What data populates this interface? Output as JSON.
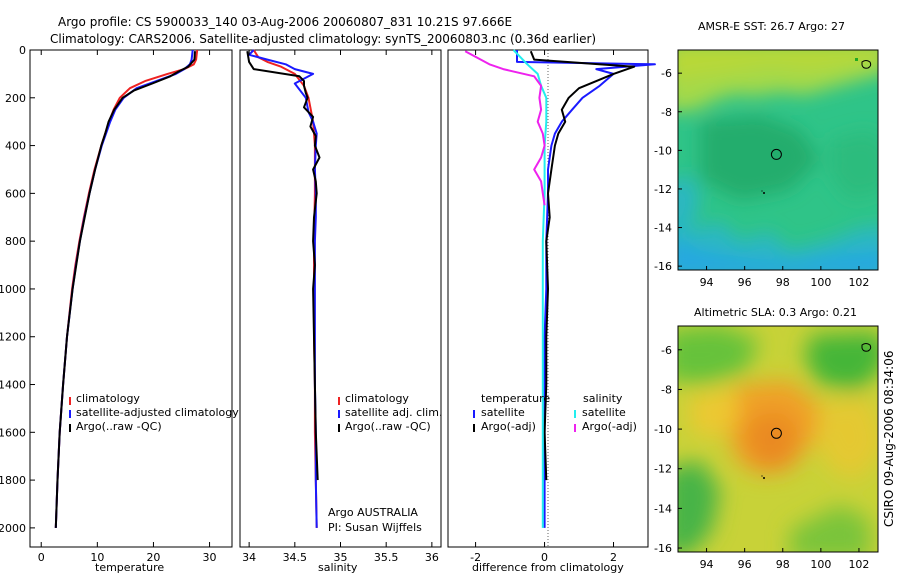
{
  "header": {
    "line1": "Argo profile: CS 5900033_140 03-Aug-2006 20060807_831 10.21S 97.666E",
    "line2": "Climatology: CARS2006. Satellite-adjusted climatology: synTS_20060803.nc (0.36d earlier)"
  },
  "side_stamp": "CSIRO 09-Aug-2006 08:34:06",
  "colors": {
    "climatology": "#ee2222",
    "satellite": "#1a1aff",
    "argo": "#000000",
    "cyan": "#22eeee",
    "magenta": "#ee22ee"
  },
  "chart_data": [
    {
      "id": "temperature",
      "type": "line",
      "xlabel": "temperature",
      "ylabel": "",
      "xlim": [
        -2,
        34
      ],
      "ylim": [
        2080,
        0
      ],
      "xticks": [
        0,
        10,
        20,
        30
      ],
      "xtick_labels": [
        "0",
        "10",
        "20",
        "30"
      ],
      "yticks": [
        0,
        200,
        400,
        600,
        800,
        1000,
        1200,
        1400,
        1600,
        1800,
        2000
      ],
      "ytick_labels": [
        "0",
        "200",
        "400",
        "600",
        "800",
        "1000",
        "1200",
        "1400",
        "1600",
        "1800",
        "2000"
      ],
      "legend": [
        "climatology",
        "satellite-adjusted climatology",
        "Argo(..raw -QC)"
      ],
      "series": [
        {
          "name": "climatology",
          "color": "#ee2222",
          "depth": [
            0,
            40,
            60,
            80,
            100,
            130,
            160,
            200,
            250,
            300,
            400,
            500,
            600,
            700,
            800,
            900,
            1000,
            1200,
            1400,
            1600,
            1800,
            2000
          ],
          "values": [
            27.8,
            27.6,
            27.2,
            25.5,
            22.5,
            18.5,
            15.8,
            14,
            12.9,
            12.1,
            10.7,
            9.5,
            8.5,
            7.6,
            6.8,
            6.1,
            5.5,
            4.6,
            3.9,
            3.3,
            2.9,
            2.6
          ]
        },
        {
          "name": "satellite-adjusted climatology",
          "color": "#1a1aff",
          "depth": [
            0,
            40,
            60,
            80,
            100,
            130,
            160,
            200,
            250,
            300,
            400,
            500,
            600,
            700,
            800,
            900,
            1000,
            1200,
            1400,
            1600,
            1800,
            2000
          ],
          "values": [
            27,
            26.8,
            26.5,
            25.5,
            24,
            20.5,
            17,
            14.7,
            13.2,
            12.3,
            10.8,
            9.6,
            8.6,
            7.7,
            6.9,
            6.2,
            5.6,
            4.6,
            3.9,
            3.3,
            2.9,
            2.6
          ]
        },
        {
          "name": "Argo(..raw -QC)",
          "color": "#000000",
          "depth": [
            5,
            40,
            70,
            90,
            110,
            140,
            170,
            200,
            250,
            300,
            350,
            400,
            500,
            600,
            800,
            1000,
            1200,
            1400,
            1600,
            1800,
            2000
          ],
          "values": [
            27.4,
            27.3,
            26.2,
            24.5,
            23,
            19.8,
            16.5,
            14.5,
            13,
            12,
            11.4,
            10.7,
            9.6,
            8.6,
            6.9,
            5.6,
            4.6,
            3.9,
            3.3,
            2.9,
            2.6
          ]
        }
      ]
    },
    {
      "id": "salinity",
      "type": "line",
      "xlabel": "salinity",
      "xlim": [
        33.9,
        36.1
      ],
      "ylim": [
        2080,
        0
      ],
      "xticks": [
        34,
        34.5,
        35,
        35.5,
        36
      ],
      "xtick_labels": [
        "34",
        "34.5",
        "35",
        "35.5",
        "36"
      ],
      "legend": [
        "climatology",
        "satellite adj. clim.",
        "Argo(..raw -QC)"
      ],
      "annotation": [
        "Argo AUSTRALIA",
        "PI: Susan Wijffels"
      ],
      "series": [
        {
          "name": "climatology",
          "color": "#ee2222",
          "depth": [
            0,
            30,
            50,
            70,
            100,
            150,
            200,
            300,
            400,
            500,
            600,
            800,
            1000,
            1200,
            1400,
            1600,
            1800,
            2000
          ],
          "values": [
            34.05,
            34.1,
            34.2,
            34.35,
            34.5,
            34.6,
            34.65,
            34.7,
            34.72,
            34.72,
            34.72,
            34.71,
            34.71,
            34.71,
            34.72,
            34.72,
            34.73,
            34.74
          ]
        },
        {
          "name": "satellite adj. clim.",
          "color": "#1a1aff",
          "depth": [
            0,
            20,
            40,
            60,
            80,
            100,
            140,
            200,
            260,
            300,
            350,
            400,
            500,
            600,
            700,
            800,
            1000,
            1200,
            1400,
            1600,
            1800,
            2000
          ],
          "values": [
            34.05,
            34,
            34.2,
            34.4,
            34.5,
            34.7,
            34.5,
            34.62,
            34.65,
            34.7,
            34.74,
            34.73,
            34.72,
            34.73,
            34.73,
            34.72,
            34.72,
            34.72,
            34.72,
            34.73,
            34.73,
            34.74
          ]
        },
        {
          "name": "Argo(..raw -QC)",
          "color": "#000000",
          "depth": [
            5,
            50,
            80,
            110,
            130,
            150,
            180,
            200,
            240,
            280,
            320,
            360,
            400,
            450,
            500,
            550,
            600,
            700,
            800,
            900,
            1000,
            1200,
            1400,
            1600,
            1800
          ],
          "values": [
            33.98,
            34.0,
            34.05,
            34.55,
            34.6,
            34.6,
            34.62,
            34.64,
            34.6,
            34.7,
            34.67,
            34.73,
            34.72,
            34.77,
            34.7,
            34.73,
            34.74,
            34.71,
            34.7,
            34.72,
            34.7,
            34.71,
            34.72,
            34.73,
            34.75
          ]
        }
      ]
    },
    {
      "id": "difference",
      "type": "line",
      "xlabel": "difference from climatology",
      "xlim": [
        -2.8,
        3.0
      ],
      "ylim": [
        2080,
        0
      ],
      "xticks": [
        -2,
        0,
        2
      ],
      "xtick_labels": [
        "-2",
        "0",
        "2"
      ],
      "legend_temperature": {
        "header": "temperature",
        "items": [
          "satellite",
          "Argo(-adj)"
        ]
      },
      "legend_salinity": {
        "header": "salinity",
        "items": [
          "satellite",
          "Argo(-adj)"
        ]
      },
      "series": [
        {
          "name": "temperature satellite",
          "color": "#1a1aff",
          "depth": [
            0,
            50,
            60,
            80,
            100,
            150,
            200,
            250,
            300,
            350,
            400,
            500,
            600,
            800,
            1000,
            1200,
            1400,
            1600,
            1800,
            2000
          ],
          "values": [
            -0.8,
            -0.8,
            3.2,
            1.5,
            2,
            1.6,
            1.1,
            0.8,
            0.5,
            0.3,
            0.2,
            0.1,
            0.1,
            0.05,
            0.05,
            0,
            0,
            0,
            0,
            0
          ]
        },
        {
          "name": "temperature Argo(-adj)",
          "color": "#000000",
          "depth": [
            5,
            40,
            70,
            100,
            130,
            160,
            200,
            250,
            300,
            350,
            400,
            500,
            600,
            700,
            800,
            1000,
            1200,
            1400,
            1600,
            1800
          ],
          "values": [
            -0.4,
            -0.3,
            2.6,
            2,
            1.5,
            1,
            0.7,
            0.5,
            0.6,
            0.4,
            0.3,
            0.2,
            0.1,
            0.15,
            0.05,
            0.1,
            0.05,
            0.05,
            0,
            0.05
          ]
        },
        {
          "name": "salinity satellite",
          "color": "#22eeee",
          "depth": [
            0,
            30,
            60,
            100,
            150,
            200,
            300,
            400,
            500,
            600,
            800,
            1000,
            1200,
            1400,
            1600,
            1800,
            2000
          ],
          "values": [
            -0.9,
            -0.7,
            -0.5,
            -0.2,
            -0.1,
            0.05,
            0.05,
            0,
            0,
            0,
            -0.05,
            -0.05,
            -0.05,
            -0.05,
            -0.05,
            -0.05,
            -0.05
          ]
        },
        {
          "name": "salinity Argo(-adj)",
          "color": "#ee22ee",
          "depth": [
            5,
            60,
            80,
            110,
            130,
            150,
            200,
            250,
            300,
            350,
            400,
            450,
            500,
            550,
            600,
            650
          ],
          "values": [
            -2.3,
            -1.6,
            -1.2,
            -0.3,
            -0.2,
            -0.1,
            -0.15,
            -0.1,
            -0.2,
            -0.05,
            0,
            -0.1,
            -0.3,
            -0.1,
            -0.05,
            0
          ]
        }
      ]
    },
    {
      "id": "sst_map",
      "type": "heatmap",
      "title": "AMSR-E SST: 26.7 Argo: 27",
      "xlim": [
        92.5,
        103
      ],
      "ylim": [
        -16.2,
        -4.8
      ],
      "xticks": [
        94,
        96,
        98,
        100,
        102
      ],
      "xtick_labels": [
        "94",
        "96",
        "98",
        "100",
        "102"
      ],
      "yticks": [
        -6,
        -8,
        -10,
        -12,
        -14,
        -16
      ],
      "ytick_labels": [
        "-6",
        "-8",
        "-10",
        "-12",
        "-14",
        "-16"
      ],
      "argo_position": [
        97.666,
        -10.21
      ]
    },
    {
      "id": "sla_map",
      "type": "heatmap",
      "title": "Altimetric SLA: 0.3 Argo: 0.21",
      "xlim": [
        92.5,
        103
      ],
      "ylim": [
        -16.2,
        -4.8
      ],
      "xticks": [
        94,
        96,
        98,
        100,
        102
      ],
      "xtick_labels": [
        "94",
        "96",
        "98",
        "100",
        "102"
      ],
      "yticks": [
        -6,
        -8,
        -10,
        -12,
        -14,
        -16
      ],
      "ytick_labels": [
        "-6",
        "-8",
        "-10",
        "-12",
        "-14",
        "-16"
      ],
      "argo_position": [
        97.666,
        -10.21
      ]
    }
  ]
}
